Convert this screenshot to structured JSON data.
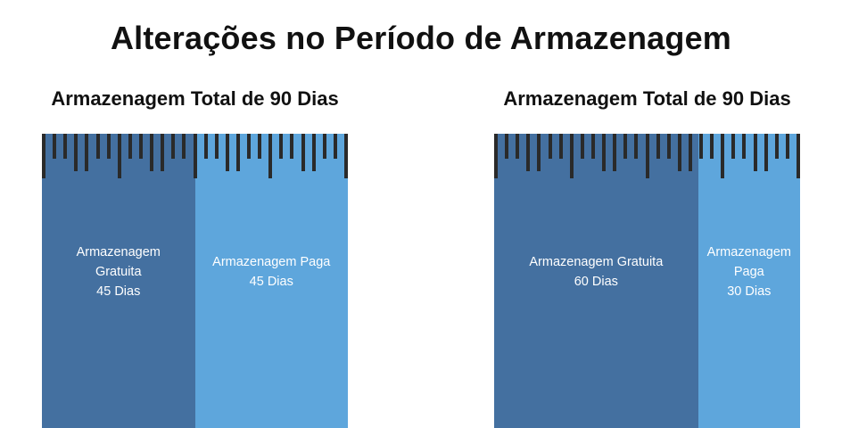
{
  "title": "Alterações no Período de Armazenagem",
  "panels": [
    {
      "title": "Armazenagem Total de 90 Dias",
      "total_days": 90,
      "segments": [
        {
          "kind": "free",
          "lines": [
            "Armazenagem",
            "Gratuita",
            "45 Dias"
          ],
          "days": 45,
          "color": "#4470a0"
        },
        {
          "kind": "paid",
          "lines": [
            "Armazenagem Paga",
            "45 Dias"
          ],
          "days": 45,
          "color": "#5ea6dc"
        }
      ]
    },
    {
      "title": "Armazenagem Total de 90 Dias",
      "total_days": 90,
      "segments": [
        {
          "kind": "free",
          "lines": [
            "Armazenagem Gratuita",
            "60 Dias"
          ],
          "days": 60,
          "color": "#4470a0"
        },
        {
          "kind": "paid",
          "lines": [
            "Armazenagem",
            "Paga",
            "30 Dias"
          ],
          "days": 30,
          "color": "#5ea6dc"
        }
      ]
    }
  ],
  "colors": {
    "free": "#4470a0",
    "paid": "#5ea6dc",
    "ruler_ticks": "#2a2a2a"
  }
}
